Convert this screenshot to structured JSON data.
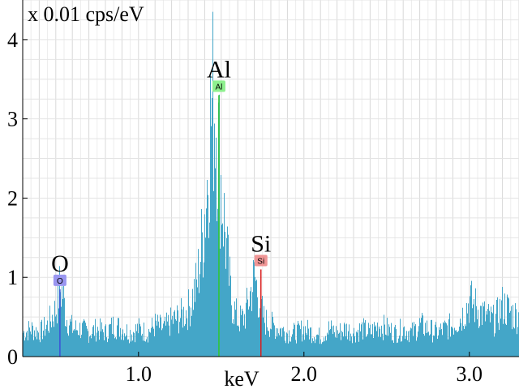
{
  "chart_data": {
    "type": "area",
    "title": "",
    "ylabel": "x 0.01 cps/eV",
    "xlabel": "keV",
    "xlim": [
      0.3,
      3.3
    ],
    "ylim": [
      0,
      4.5
    ],
    "x_ticks": [
      {
        "value": 1.0,
        "label": "1.0"
      },
      {
        "value": 2.0,
        "label": "2.0"
      },
      {
        "value": 3.0,
        "label": "3.0"
      }
    ],
    "y_ticks": [
      {
        "value": 0,
        "label": "0"
      },
      {
        "value": 1,
        "label": "1"
      },
      {
        "value": 2,
        "label": "2"
      },
      {
        "value": 3,
        "label": "3"
      },
      {
        "value": 4,
        "label": "4"
      }
    ],
    "grid": true,
    "spectrum_color": "#44a6c8",
    "series": [
      {
        "x": [
          0.3,
          0.35,
          0.4,
          0.45,
          0.5,
          0.52,
          0.54,
          0.56,
          0.6,
          0.65,
          0.7,
          0.75,
          0.8,
          0.85,
          0.9,
          0.95,
          1.0,
          1.05,
          1.1,
          1.15,
          1.2,
          1.25,
          1.3,
          1.35,
          1.38,
          1.41,
          1.43,
          1.45,
          1.46,
          1.47,
          1.48,
          1.49,
          1.5,
          1.52,
          1.54,
          1.56,
          1.6,
          1.64,
          1.68,
          1.7,
          1.72,
          1.74,
          1.76,
          1.8,
          1.85,
          1.9,
          1.95,
          2.0,
          2.05,
          2.1,
          2.15,
          2.2,
          2.25,
          2.3,
          2.35,
          2.4,
          2.45,
          2.5,
          2.55,
          2.6,
          2.65,
          2.7,
          2.75,
          2.8,
          2.85,
          2.9,
          2.95,
          3.0,
          3.05,
          3.1,
          3.15,
          3.2,
          3.25,
          3.3
        ],
        "y": [
          0.3,
          0.35,
          0.3,
          0.4,
          0.6,
          0.85,
          0.8,
          0.5,
          0.35,
          0.35,
          0.3,
          0.35,
          0.3,
          0.4,
          0.35,
          0.3,
          0.35,
          0.3,
          0.4,
          0.35,
          0.45,
          0.5,
          0.6,
          0.9,
          1.4,
          2.1,
          2.9,
          3.25,
          3.2,
          3.0,
          2.7,
          2.4,
          2.1,
          1.6,
          1.1,
          0.7,
          0.45,
          0.5,
          0.85,
          1.0,
          0.8,
          0.6,
          0.45,
          0.4,
          0.35,
          0.3,
          0.3,
          0.35,
          0.3,
          0.25,
          0.35,
          0.3,
          0.35,
          0.3,
          0.35,
          0.3,
          0.4,
          0.35,
          0.3,
          0.35,
          0.3,
          0.4,
          0.35,
          0.3,
          0.35,
          0.4,
          0.5,
          0.7,
          0.6,
          0.5,
          0.45,
          0.65,
          0.55,
          0.5
        ]
      }
    ],
    "element_markers": [
      {
        "symbol": "O",
        "tag": "O",
        "energy": 0.525,
        "peak": 0.85,
        "color": "#3a50d8",
        "tag_bg": "#9a96f0"
      },
      {
        "symbol": "Al",
        "tag": "Al",
        "energy": 1.486,
        "peak": 3.3,
        "color": "#2ec82e",
        "tag_bg": "#8ef08e"
      },
      {
        "symbol": "Si",
        "tag": "Si",
        "energy": 1.74,
        "peak": 1.1,
        "color": "#d81e1e",
        "tag_bg": "#f09696"
      }
    ]
  }
}
